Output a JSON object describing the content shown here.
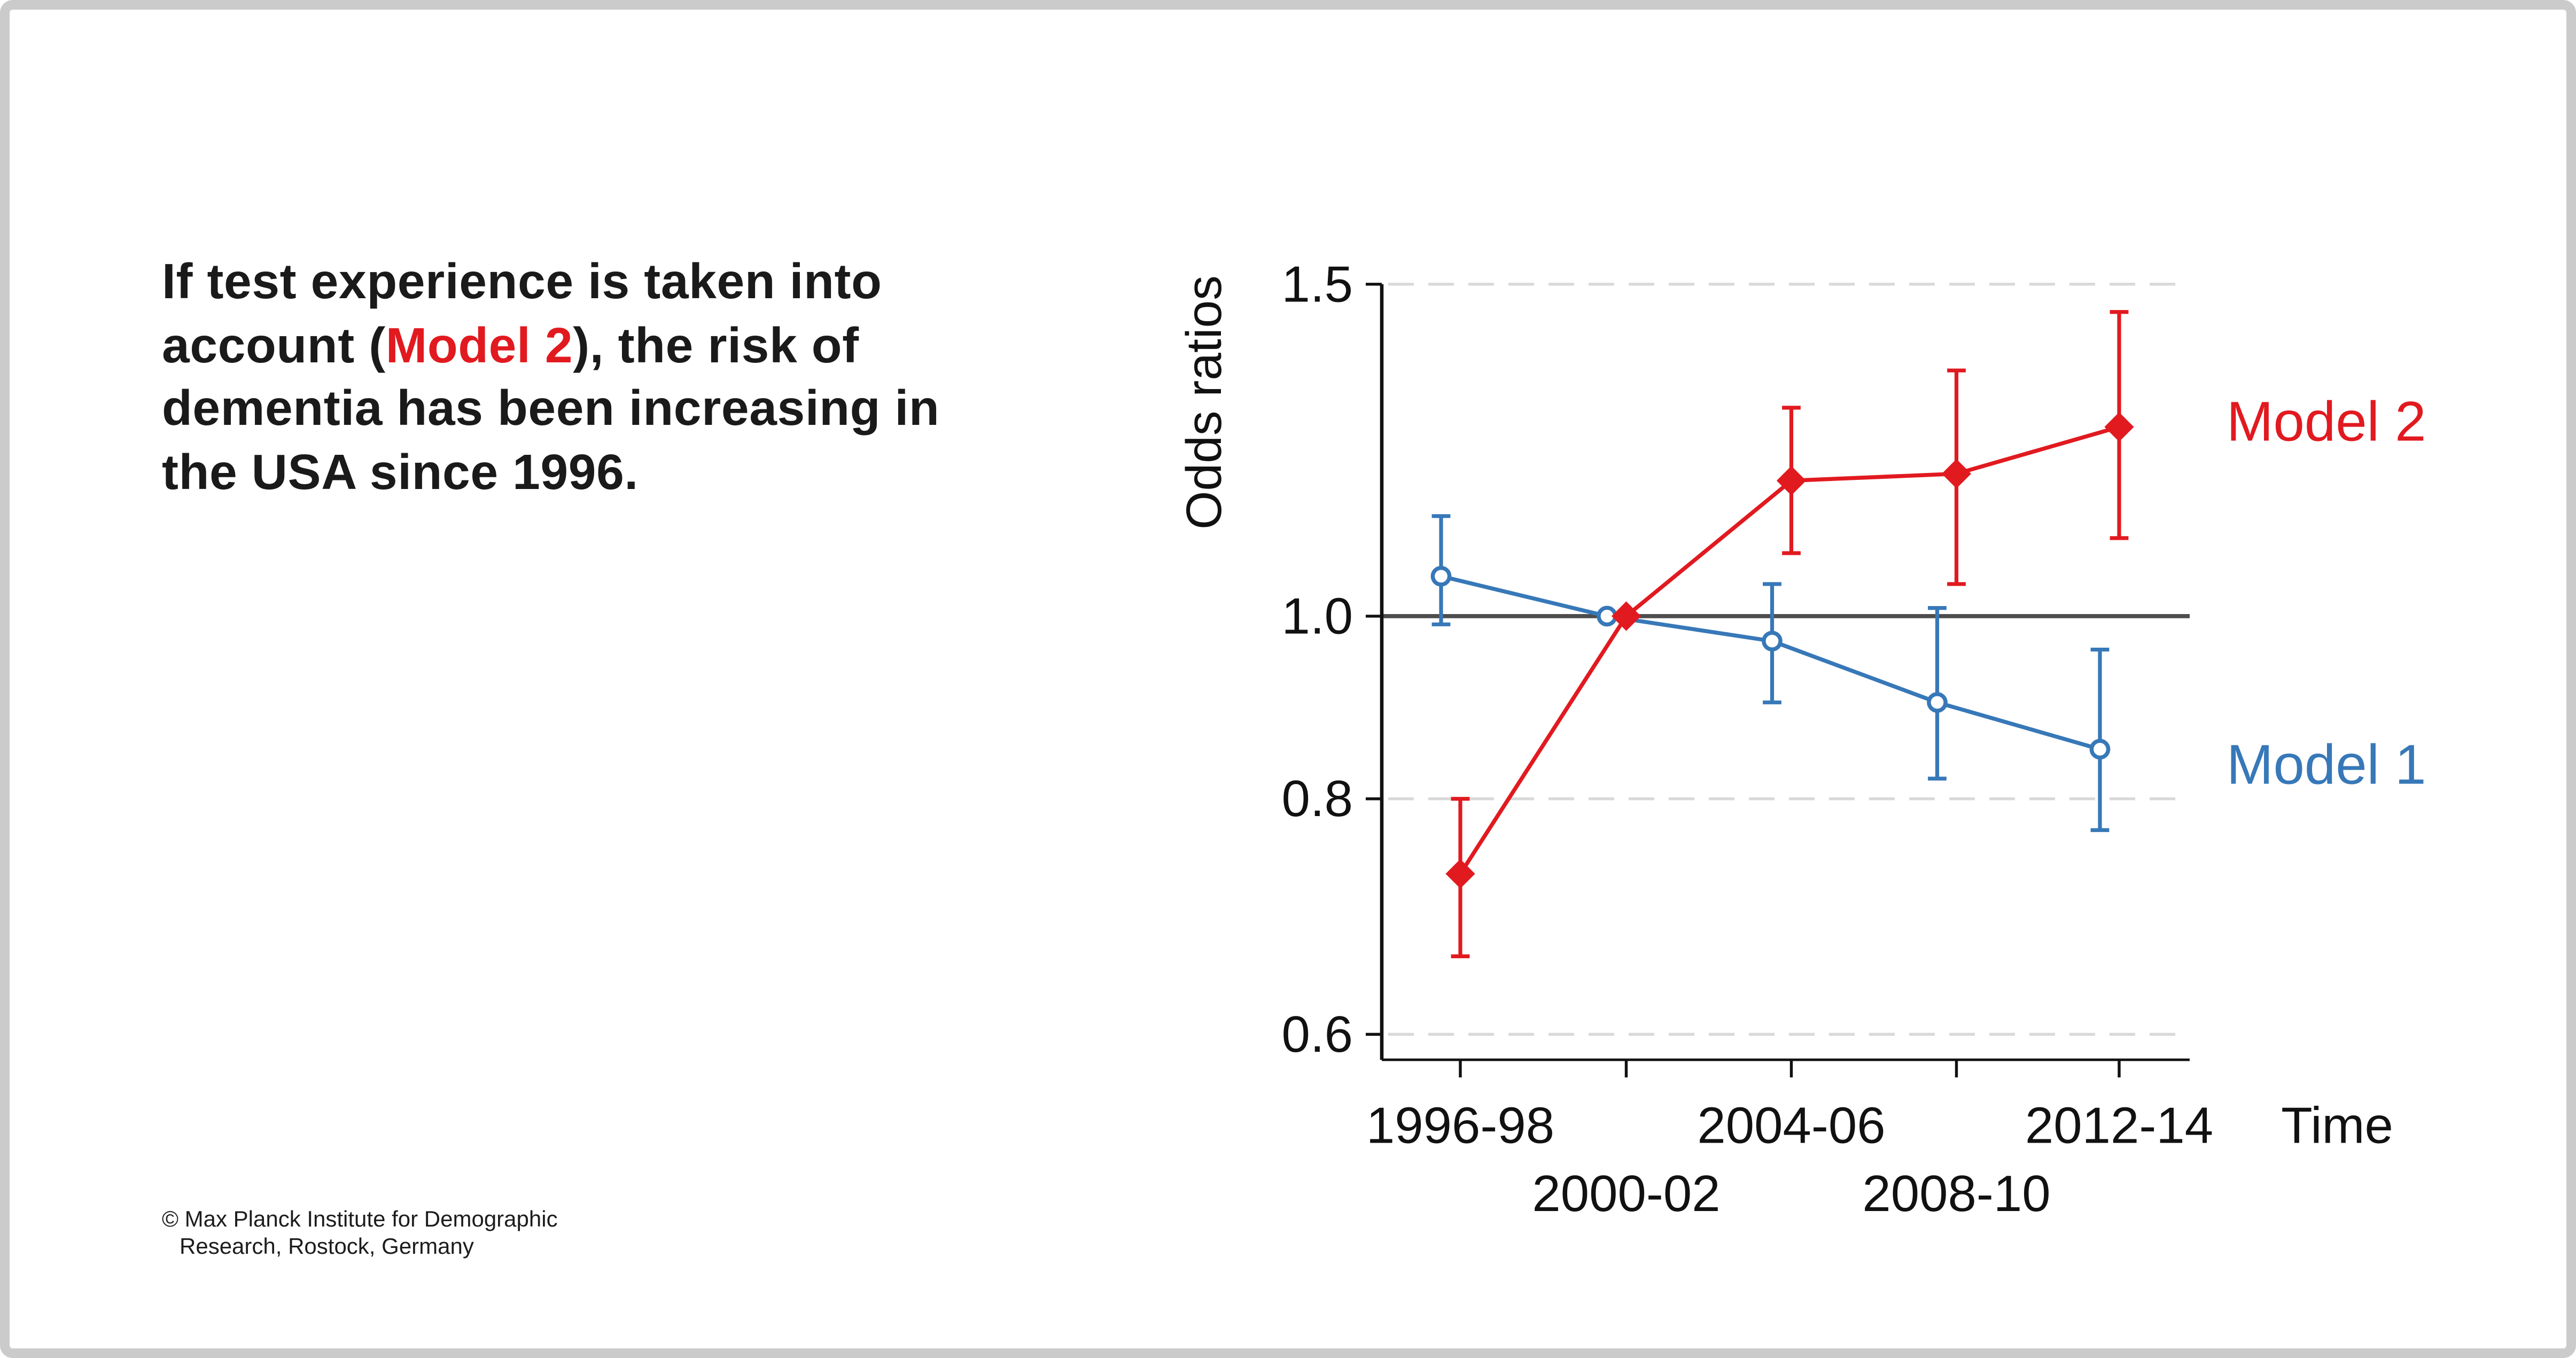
{
  "page": {
    "background": "#ffffff",
    "frame_color": "#cbcbcb"
  },
  "headline": {
    "part1": "If test experience is taken into\naccount (",
    "highlight": "Model 2",
    "part3": "), the risk of\ndementia has been increasing in\nthe USA since 1996.",
    "text_color": "#1a1a1a",
    "highlight_color": "#e11a20"
  },
  "footer": {
    "line1": "© Max Planck Institute for Demographic",
    "line2": "Research, Rostock, Germany"
  },
  "chart_data": {
    "type": "line",
    "title": "",
    "xlabel": "Time",
    "ylabel": "Odds ratios",
    "yscale": "log",
    "ylim": [
      0.55,
      1.55
    ],
    "yticks": [
      1.5,
      1.0,
      0.8,
      0.6
    ],
    "ytick_labels": [
      "1.5",
      "1.0",
      "0.8",
      "0.6"
    ],
    "categories": [
      "1996-98",
      "2000-02",
      "2004-06",
      "2008-10",
      "2012-14"
    ],
    "x_label_rows": [
      0,
      1,
      0,
      1,
      0
    ],
    "reference_line": 1.0,
    "grid": "dashed horizontal at 1.5, 0.8, 0.6",
    "legend_position": "right",
    "series": [
      {
        "name": "Model 1",
        "color": "#3778b8",
        "marker": "circle-open",
        "values": [
          1.05,
          1.0,
          0.97,
          0.9,
          0.85
        ],
        "ci_low": [
          0.99,
          null,
          0.9,
          0.82,
          0.77
        ],
        "ci_high": [
          1.13,
          null,
          1.04,
          1.01,
          0.96
        ]
      },
      {
        "name": "Model 2",
        "color": "#e11a20",
        "marker": "diamond-filled",
        "values": [
          0.73,
          1.0,
          1.18,
          1.19,
          1.26
        ],
        "ci_low": [
          0.66,
          null,
          1.08,
          1.04,
          1.1
        ],
        "ci_high": [
          0.8,
          null,
          1.29,
          1.35,
          1.45
        ]
      }
    ],
    "colors": {
      "grid": "#d9d9d9",
      "reference_line": "#4d4d4d",
      "axis": "#111111",
      "tick_labels": "#111111"
    }
  }
}
